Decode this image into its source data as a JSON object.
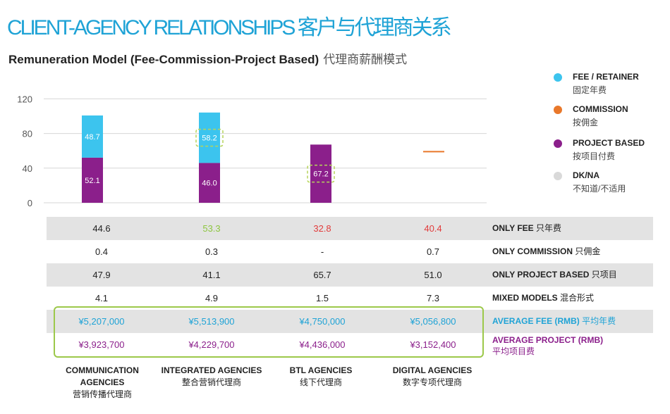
{
  "title": "CLIENT-AGENCY RELATIONSHIPS 客户与代理商关系",
  "subtitle_en": "Remuneration Model (Fee-Commission-Project Based)",
  "subtitle_cn": "代理商薪酬模式",
  "legend": [
    {
      "en": "FEE / RETAINER",
      "cn": "固定年费",
      "color": "#3cc4ee"
    },
    {
      "en": "COMMISSION",
      "cn": "按佣金",
      "color": "#e9782a"
    },
    {
      "en": "PROJECT BASED",
      "cn": "按项目付费",
      "color": "#8b1f8b"
    },
    {
      "en": "DK/NA",
      "cn": "不知道/不适用",
      "color": "#d9d9d9"
    }
  ],
  "chart_data": {
    "type": "bar",
    "stacked": true,
    "categories": [
      "COMMUNICATION AGENCIES",
      "INTEGRATED AGENCIES",
      "BTL AGENCIES",
      "DIGITAL AGENCIES"
    ],
    "categories_cn": [
      "营销传播代理商",
      "整合营销代理商",
      "线下代理商",
      "数字专项代理商"
    ],
    "series": [
      {
        "name": "PROJECT BASED",
        "color": "#8b1f8b",
        "values": [
          52.1,
          46.0,
          67.2,
          0
        ]
      },
      {
        "name": "COMMISSION",
        "color": "#e9782a",
        "values": [
          0,
          0,
          0,
          0
        ]
      },
      {
        "name": "FEE / RETAINER",
        "color": "#3cc4ee",
        "values": [
          48.7,
          58.2,
          0,
          0
        ]
      }
    ],
    "data_labels": [
      [
        "52.1",
        "48.7"
      ],
      [
        "46.0",
        "58.2"
      ],
      [
        "67.2"
      ],
      []
    ],
    "highlighted_labels": [
      "58.2",
      "67.2"
    ],
    "digital_marker_value": 59,
    "yticks": [
      0,
      40,
      80,
      120
    ],
    "ylim": [
      0,
      120
    ],
    "grid": true
  },
  "table": {
    "rows": [
      {
        "label_en": "ONLY FEE",
        "label_cn": "只年费",
        "values": [
          "44.6",
          "53.3",
          "32.8",
          "40.4"
        ],
        "colors": [
          "#222222",
          "#8dc63f",
          "#e23b3b",
          "#e23b3b"
        ],
        "shaded": true
      },
      {
        "label_en": "ONLY COMMISSION",
        "label_cn": "只佣金",
        "values": [
          "0.4",
          "0.3",
          "-",
          "0.7"
        ],
        "colors": [
          "#222222",
          "#222222",
          "#222222",
          "#222222"
        ],
        "shaded": false
      },
      {
        "label_en": "ONLY PROJECT BASED",
        "label_cn": "只项目",
        "values": [
          "47.9",
          "41.1",
          "65.7",
          "51.0"
        ],
        "colors": [
          "#222222",
          "#222222",
          "#222222",
          "#222222"
        ],
        "shaded": true
      },
      {
        "label_en": "MIXED MODELS",
        "label_cn": "混合形式",
        "values": [
          "4.1",
          "4.9",
          "1.5",
          "7.3"
        ],
        "colors": [
          "#222222",
          "#222222",
          "#222222",
          "#222222"
        ],
        "shaded": false
      },
      {
        "label_en": "AVERAGE FEE (RMB)",
        "label_cn": "平均年费",
        "values": [
          "¥5,207,000",
          "¥5,513,900",
          "¥4,750,000",
          "¥5,056,800"
        ],
        "colors": [
          "#1fa3d6",
          "#1fa3d6",
          "#1fa3d6",
          "#1fa3d6"
        ],
        "shaded": true,
        "label_color": "#1fa3d6"
      },
      {
        "label_en": "AVERAGE PROJECT (RMB)",
        "label_cn": "平均项目费",
        "values": [
          "¥3,923,700",
          "¥4,229,700",
          "¥4,436,000",
          "¥3,152,400"
        ],
        "colors": [
          "#8b1f8b",
          "#8b1f8b",
          "#8b1f8b",
          "#8b1f8b"
        ],
        "shaded": false,
        "label_color": "#8b1f8b"
      }
    ]
  }
}
